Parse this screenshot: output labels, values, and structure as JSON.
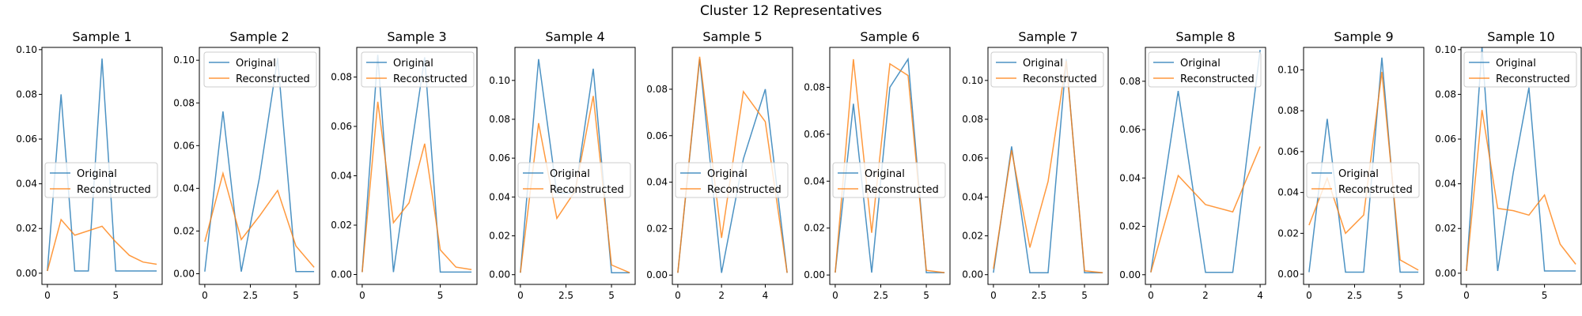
{
  "figure_title": "Cluster 12 Representatives",
  "colors": {
    "original": "#1f77b4",
    "reconstructed": "#ff7f0e"
  },
  "chart_data": [
    {
      "type": "line",
      "title": "Sample 1",
      "x": [
        0,
        1,
        2,
        3,
        4,
        5,
        6,
        7,
        8
      ],
      "xticks": [
        0,
        5
      ],
      "yticks": [
        "0.00",
        "0.02",
        "0.04",
        "0.06",
        "0.08",
        "0.10"
      ],
      "xlim": [
        -0.4,
        8.4
      ],
      "ylim": [
        -0.005,
        0.101
      ],
      "legend": "center-left",
      "series": [
        {
          "name": "Original",
          "values": [
            0.001,
            0.08,
            0.001,
            0.001,
            0.096,
            0.001,
            0.001,
            0.001,
            0.001
          ]
        },
        {
          "name": "Reconstructed",
          "values": [
            0.001,
            0.024,
            0.017,
            0.019,
            0.021,
            0.014,
            0.008,
            0.005,
            0.004
          ]
        }
      ]
    },
    {
      "type": "line",
      "title": "Sample 2",
      "x": [
        0,
        1,
        2,
        3,
        4,
        5,
        6
      ],
      "xticks": [
        0.0,
        2.5,
        5.0
      ],
      "yticks": [
        "0.00",
        "0.02",
        "0.04",
        "0.06",
        "0.08",
        "0.10"
      ],
      "xlim": [
        -0.3,
        6.3
      ],
      "ylim": [
        -0.005,
        0.106
      ],
      "legend": "top-right",
      "series": [
        {
          "name": "Original",
          "values": [
            0.001,
            0.076,
            0.001,
            0.045,
            0.101,
            0.001,
            0.001
          ]
        },
        {
          "name": "Reconstructed",
          "values": [
            0.015,
            0.047,
            0.016,
            0.027,
            0.039,
            0.013,
            0.003
          ]
        }
      ]
    },
    {
      "type": "line",
      "title": "Sample 3",
      "x": [
        0,
        1,
        2,
        3,
        4,
        5,
        6,
        7
      ],
      "xticks": [
        0,
        5
      ],
      "yticks": [
        "0.00",
        "0.02",
        "0.04",
        "0.06",
        "0.08"
      ],
      "xlim": [
        -0.35,
        7.35
      ],
      "ylim": [
        -0.004,
        0.092
      ],
      "legend": "top-right",
      "series": [
        {
          "name": "Original",
          "values": [
            0.001,
            0.089,
            0.001,
            0.045,
            0.088,
            0.001,
            0.001,
            0.001
          ]
        },
        {
          "name": "Reconstructed",
          "values": [
            0.001,
            0.07,
            0.021,
            0.029,
            0.053,
            0.01,
            0.003,
            0.002
          ]
        }
      ]
    },
    {
      "type": "line",
      "title": "Sample 4",
      "x": [
        0,
        1,
        2,
        3,
        4,
        5,
        6
      ],
      "xticks": [
        0,
        2.5,
        5
      ],
      "yticks": [
        "0.00",
        "0.02",
        "0.04",
        "0.06",
        "0.08",
        "0.10"
      ],
      "xlim": [
        -0.3,
        6.3
      ],
      "ylim": [
        -0.005,
        0.117
      ],
      "legend": "center-left",
      "series": [
        {
          "name": "Original",
          "values": [
            0.001,
            0.111,
            0.042,
            0.042,
            0.106,
            0.001,
            0.001
          ]
        },
        {
          "name": "Reconstructed",
          "values": [
            0.001,
            0.078,
            0.029,
            0.043,
            0.092,
            0.005,
            0.001
          ]
        }
      ]
    },
    {
      "type": "line",
      "title": "Sample 5",
      "x": [
        0,
        1,
        2,
        3,
        4,
        5
      ],
      "xticks": [
        0,
        2,
        4
      ],
      "yticks": [
        "0.00",
        "0.02",
        "0.04",
        "0.06",
        "0.08"
      ],
      "xlim": [
        -0.25,
        5.25
      ],
      "ylim": [
        -0.004,
        0.098
      ],
      "legend": "center-left",
      "series": [
        {
          "name": "Original",
          "values": [
            0.001,
            0.093,
            0.001,
            0.05,
            0.08,
            0.001
          ]
        },
        {
          "name": "Reconstructed",
          "values": [
            0.001,
            0.094,
            0.016,
            0.079,
            0.066,
            0.001
          ]
        }
      ]
    },
    {
      "type": "line",
      "title": "Sample 6",
      "x": [
        0,
        1,
        2,
        3,
        4,
        5,
        6
      ],
      "xticks": [
        0.0,
        2.5,
        5.0
      ],
      "yticks": [
        "0.00",
        "0.02",
        "0.04",
        "0.06",
        "0.08"
      ],
      "xlim": [
        -0.3,
        6.3
      ],
      "ylim": [
        -0.004,
        0.097
      ],
      "legend": "center-left",
      "series": [
        {
          "name": "Original",
          "values": [
            0.001,
            0.073,
            0.001,
            0.08,
            0.092,
            0.001,
            0.001
          ]
        },
        {
          "name": "Reconstructed",
          "values": [
            0.001,
            0.092,
            0.018,
            0.09,
            0.085,
            0.002,
            0.001
          ]
        }
      ]
    },
    {
      "type": "line",
      "title": "Sample 7",
      "x": [
        0,
        1,
        2,
        3,
        4,
        5,
        6
      ],
      "xticks": [
        0.0,
        2.5,
        5.0
      ],
      "yticks": [
        "0.00",
        "0.02",
        "0.04",
        "0.06",
        "0.08",
        "0.10"
      ],
      "xlim": [
        -0.3,
        6.3
      ],
      "ylim": [
        -0.005,
        0.117
      ],
      "legend": "top-left",
      "series": [
        {
          "name": "Original",
          "values": [
            0.001,
            0.066,
            0.001,
            0.001,
            0.111,
            0.001,
            0.001
          ]
        },
        {
          "name": "Reconstructed",
          "values": [
            0.003,
            0.064,
            0.014,
            0.048,
            0.11,
            0.002,
            0.001
          ]
        }
      ]
    },
    {
      "type": "line",
      "title": "Sample 8",
      "x": [
        0,
        1,
        2,
        3,
        4
      ],
      "xticks": [
        0,
        2,
        4
      ],
      "yticks": [
        "0.00",
        "0.02",
        "0.04",
        "0.06",
        "0.08"
      ],
      "xlim": [
        -0.2,
        4.2
      ],
      "ylim": [
        -0.004,
        0.094
      ],
      "legend": "top-left",
      "series": [
        {
          "name": "Original",
          "values": [
            0.001,
            0.076,
            0.001,
            0.001,
            0.093
          ]
        },
        {
          "name": "Reconstructed",
          "values": [
            0.001,
            0.041,
            0.029,
            0.026,
            0.053
          ]
        }
      ]
    },
    {
      "type": "line",
      "title": "Sample 9",
      "x": [
        0,
        1,
        2,
        3,
        4,
        5,
        6
      ],
      "xticks": [
        0.0,
        2.5,
        5.0
      ],
      "yticks": [
        "0.00",
        "0.02",
        "0.04",
        "0.06",
        "0.08",
        "0.10"
      ],
      "xlim": [
        -0.3,
        6.3
      ],
      "ylim": [
        -0.005,
        0.111
      ],
      "legend": "center-left",
      "series": [
        {
          "name": "Original",
          "values": [
            0.001,
            0.076,
            0.001,
            0.001,
            0.106,
            0.001,
            0.001
          ]
        },
        {
          "name": "Reconstructed",
          "values": [
            0.024,
            0.047,
            0.02,
            0.029,
            0.099,
            0.007,
            0.002
          ]
        }
      ]
    },
    {
      "type": "line",
      "title": "Sample 10",
      "x": [
        0,
        1,
        2,
        3,
        4,
        5,
        6,
        7
      ],
      "xticks": [
        0,
        5
      ],
      "yticks": [
        "0.00",
        "0.02",
        "0.04",
        "0.06",
        "0.08",
        "0.10"
      ],
      "xlim": [
        -0.35,
        7.35
      ],
      "ylim": [
        -0.005,
        0.101
      ],
      "legend": "top-left",
      "series": [
        {
          "name": "Original",
          "values": [
            0.001,
            0.101,
            0.001,
            0.045,
            0.083,
            0.001,
            0.001,
            0.001
          ]
        },
        {
          "name": "Reconstructed",
          "values": [
            0.001,
            0.073,
            0.029,
            0.028,
            0.026,
            0.035,
            0.013,
            0.004
          ]
        }
      ]
    }
  ]
}
